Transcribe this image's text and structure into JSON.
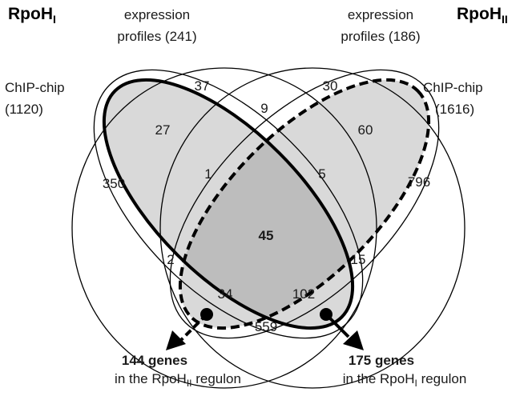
{
  "titles": {
    "left_main": "RpoH",
    "left_sub": "I",
    "right_main": "RpoH",
    "right_sub": "II"
  },
  "sets": {
    "left_expression": {
      "line1": "expression",
      "line2": "profiles (241)"
    },
    "right_expression": {
      "line1": "expression",
      "line2": "profiles (186)"
    },
    "left_chip": {
      "line1": "ChIP-chip",
      "line2": "(1120)"
    },
    "right_chip": {
      "line1": "ChIP-chip",
      "line2": "(1616)"
    }
  },
  "regions": {
    "r37": "37",
    "r30": "30",
    "r9": "9",
    "r27": "27",
    "r60": "60",
    "r350": "350",
    "r1": "1",
    "r5": "5",
    "r796": "796",
    "r45": "45",
    "r2": "2",
    "r15": "15",
    "r34": "34",
    "r102": "102",
    "r559": "559"
  },
  "results": {
    "left": {
      "count": "144 genes",
      "text_pre": "in the RpoH",
      "text_sub": "II",
      "text_post": " regulon"
    },
    "right": {
      "count": "175 genes",
      "text_pre": "in the RpoH",
      "text_sub": "I",
      "text_post": " regulon"
    }
  },
  "colors": {
    "shade": "#d9d9d9",
    "center": "#bdbdbd",
    "stroke": "#000000"
  }
}
